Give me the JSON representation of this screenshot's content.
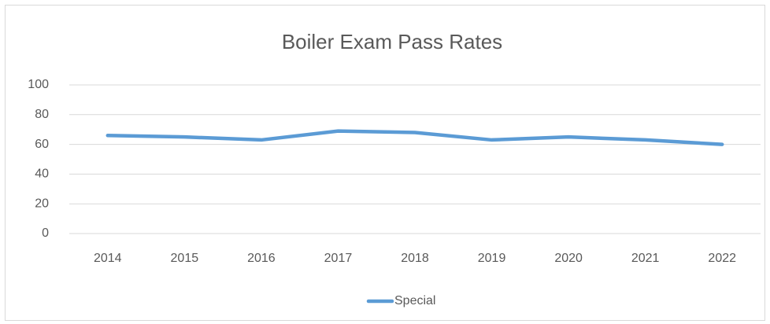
{
  "chart_data": {
    "type": "line",
    "title": "Boiler Exam Pass Rates",
    "categories": [
      "2014",
      "2015",
      "2016",
      "2017",
      "2018",
      "2019",
      "2020",
      "2021",
      "2022"
    ],
    "series": [
      {
        "name": "Special",
        "color": "#5b9bd5",
        "values": [
          66,
          65,
          63,
          69,
          68,
          63,
          65,
          63,
          60
        ]
      }
    ],
    "ylim": [
      0,
      100
    ],
    "yticks": [
      0,
      20,
      40,
      60,
      80,
      100
    ],
    "grid": true,
    "legend": "bottom"
  }
}
